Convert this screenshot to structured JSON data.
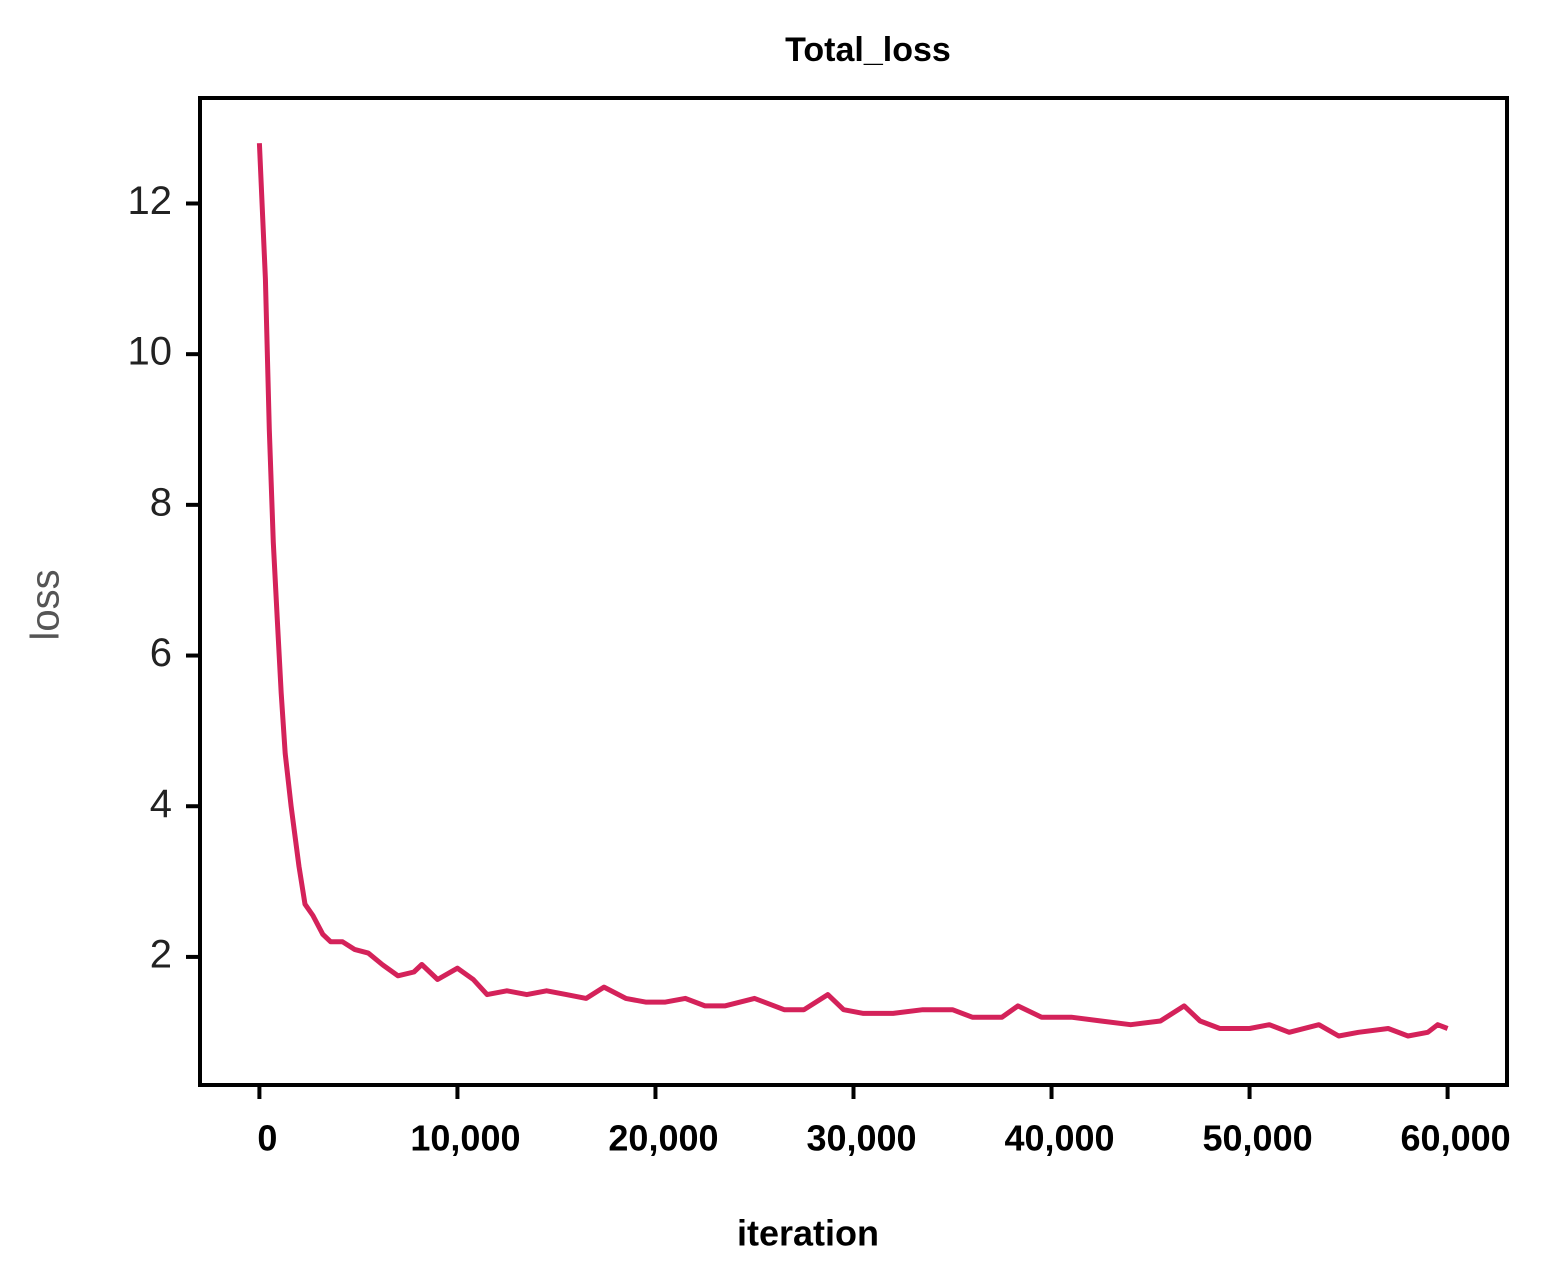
{
  "chart_data": {
    "type": "line",
    "title": "Total_loss",
    "xlabel": "iteration",
    "ylabel": "loss",
    "x": [
      0,
      300,
      500,
      700,
      900,
      1100,
      1300,
      1600,
      2000,
      2300,
      2700,
      3200,
      3600,
      4200,
      4800,
      5500,
      6200,
      7000,
      7800,
      8200,
      9000,
      10000,
      10800,
      11500,
      12500,
      13500,
      14500,
      15500,
      16500,
      17400,
      18500,
      19500,
      20500,
      21500,
      22500,
      23500,
      25000,
      26500,
      27500,
      28700,
      29500,
      30500,
      32000,
      33500,
      35000,
      36000,
      37500,
      38300,
      39500,
      41000,
      42500,
      44000,
      45500,
      46700,
      47500,
      48500,
      50000,
      51000,
      52000,
      53500,
      54500,
      55500,
      57000,
      58000,
      59000,
      59500,
      60000
    ],
    "values": [
      12.8,
      11,
      9,
      7.5,
      6.5,
      5.5,
      4.7,
      4.0,
      3.2,
      2.7,
      2.55,
      2.3,
      2.2,
      2.2,
      2.1,
      2.05,
      1.9,
      1.75,
      1.8,
      1.9,
      1.7,
      1.85,
      1.7,
      1.5,
      1.55,
      1.5,
      1.55,
      1.5,
      1.45,
      1.6,
      1.45,
      1.4,
      1.4,
      1.45,
      1.35,
      1.35,
      1.45,
      1.3,
      1.3,
      1.5,
      1.3,
      1.25,
      1.25,
      1.3,
      1.3,
      1.2,
      1.2,
      1.35,
      1.2,
      1.2,
      1.15,
      1.1,
      1.15,
      1.35,
      1.15,
      1.05,
      1.05,
      1.1,
      1.0,
      1.1,
      0.95,
      1.0,
      1.05,
      0.95,
      1.0,
      1.1,
      1.05
    ],
    "color": "#d4225a",
    "xlim": [
      -3000,
      63000
    ],
    "xticks": [
      0,
      {
        "value": 10000,
        "label": "10,000"
      },
      {
        "value": 20000,
        "label": "20,000"
      },
      {
        "value": 30000,
        "label": "30,000"
      },
      {
        "value": 40000,
        "label": "40,000"
      },
      {
        "value": 50000,
        "label": "50,000"
      },
      {
        "value": 60000,
        "label": "60,000"
      }
    ],
    "ylim": [
      0.3,
      13.4
    ],
    "yticks": [
      2,
      4,
      6,
      8,
      10,
      12
    ]
  }
}
